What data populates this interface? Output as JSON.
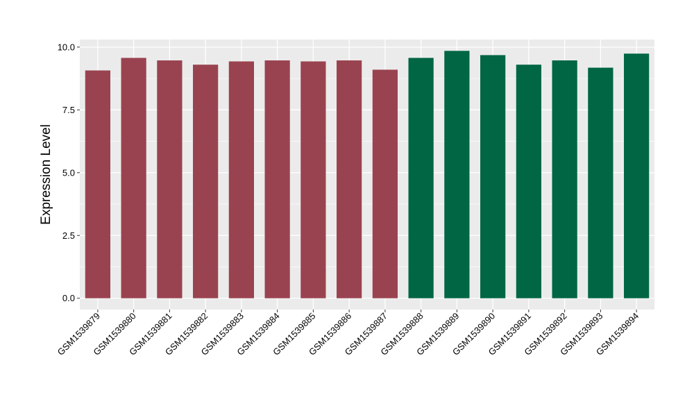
{
  "chart_data": {
    "type": "bar",
    "title": "",
    "xlabel": "",
    "ylabel": "Expression Level",
    "ylim": [
      -0.45,
      10.3
    ],
    "yticks": [
      0.0,
      2.5,
      5.0,
      7.5,
      10.0
    ],
    "ytick_labels": [
      "0.0",
      "2.5",
      "5.0",
      "7.5",
      "10.0"
    ],
    "grid": true,
    "legend": "none",
    "categories": [
      "GSM1539879",
      "GSM1539880",
      "GSM1539881",
      "GSM1539882",
      "GSM1539883",
      "GSM1539884",
      "GSM1539885",
      "GSM1539886",
      "GSM1539887",
      "GSM1539888",
      "GSM1539889",
      "GSM1539890",
      "GSM1539891",
      "GSM1539892",
      "GSM1539893",
      "GSM1539894"
    ],
    "values": [
      9.07,
      9.57,
      9.47,
      9.3,
      9.43,
      9.47,
      9.43,
      9.47,
      9.1,
      9.57,
      9.85,
      9.68,
      9.3,
      9.47,
      9.18,
      9.74
    ],
    "bar_colors": [
      "#9a4350",
      "#9a4350",
      "#9a4350",
      "#9a4350",
      "#9a4350",
      "#9a4350",
      "#9a4350",
      "#9a4350",
      "#9a4350",
      "#006644",
      "#006644",
      "#006644",
      "#006644",
      "#006644",
      "#006644",
      "#006644"
    ],
    "panel_background": "#ebebeb",
    "gridline_color": "#ffffff"
  }
}
